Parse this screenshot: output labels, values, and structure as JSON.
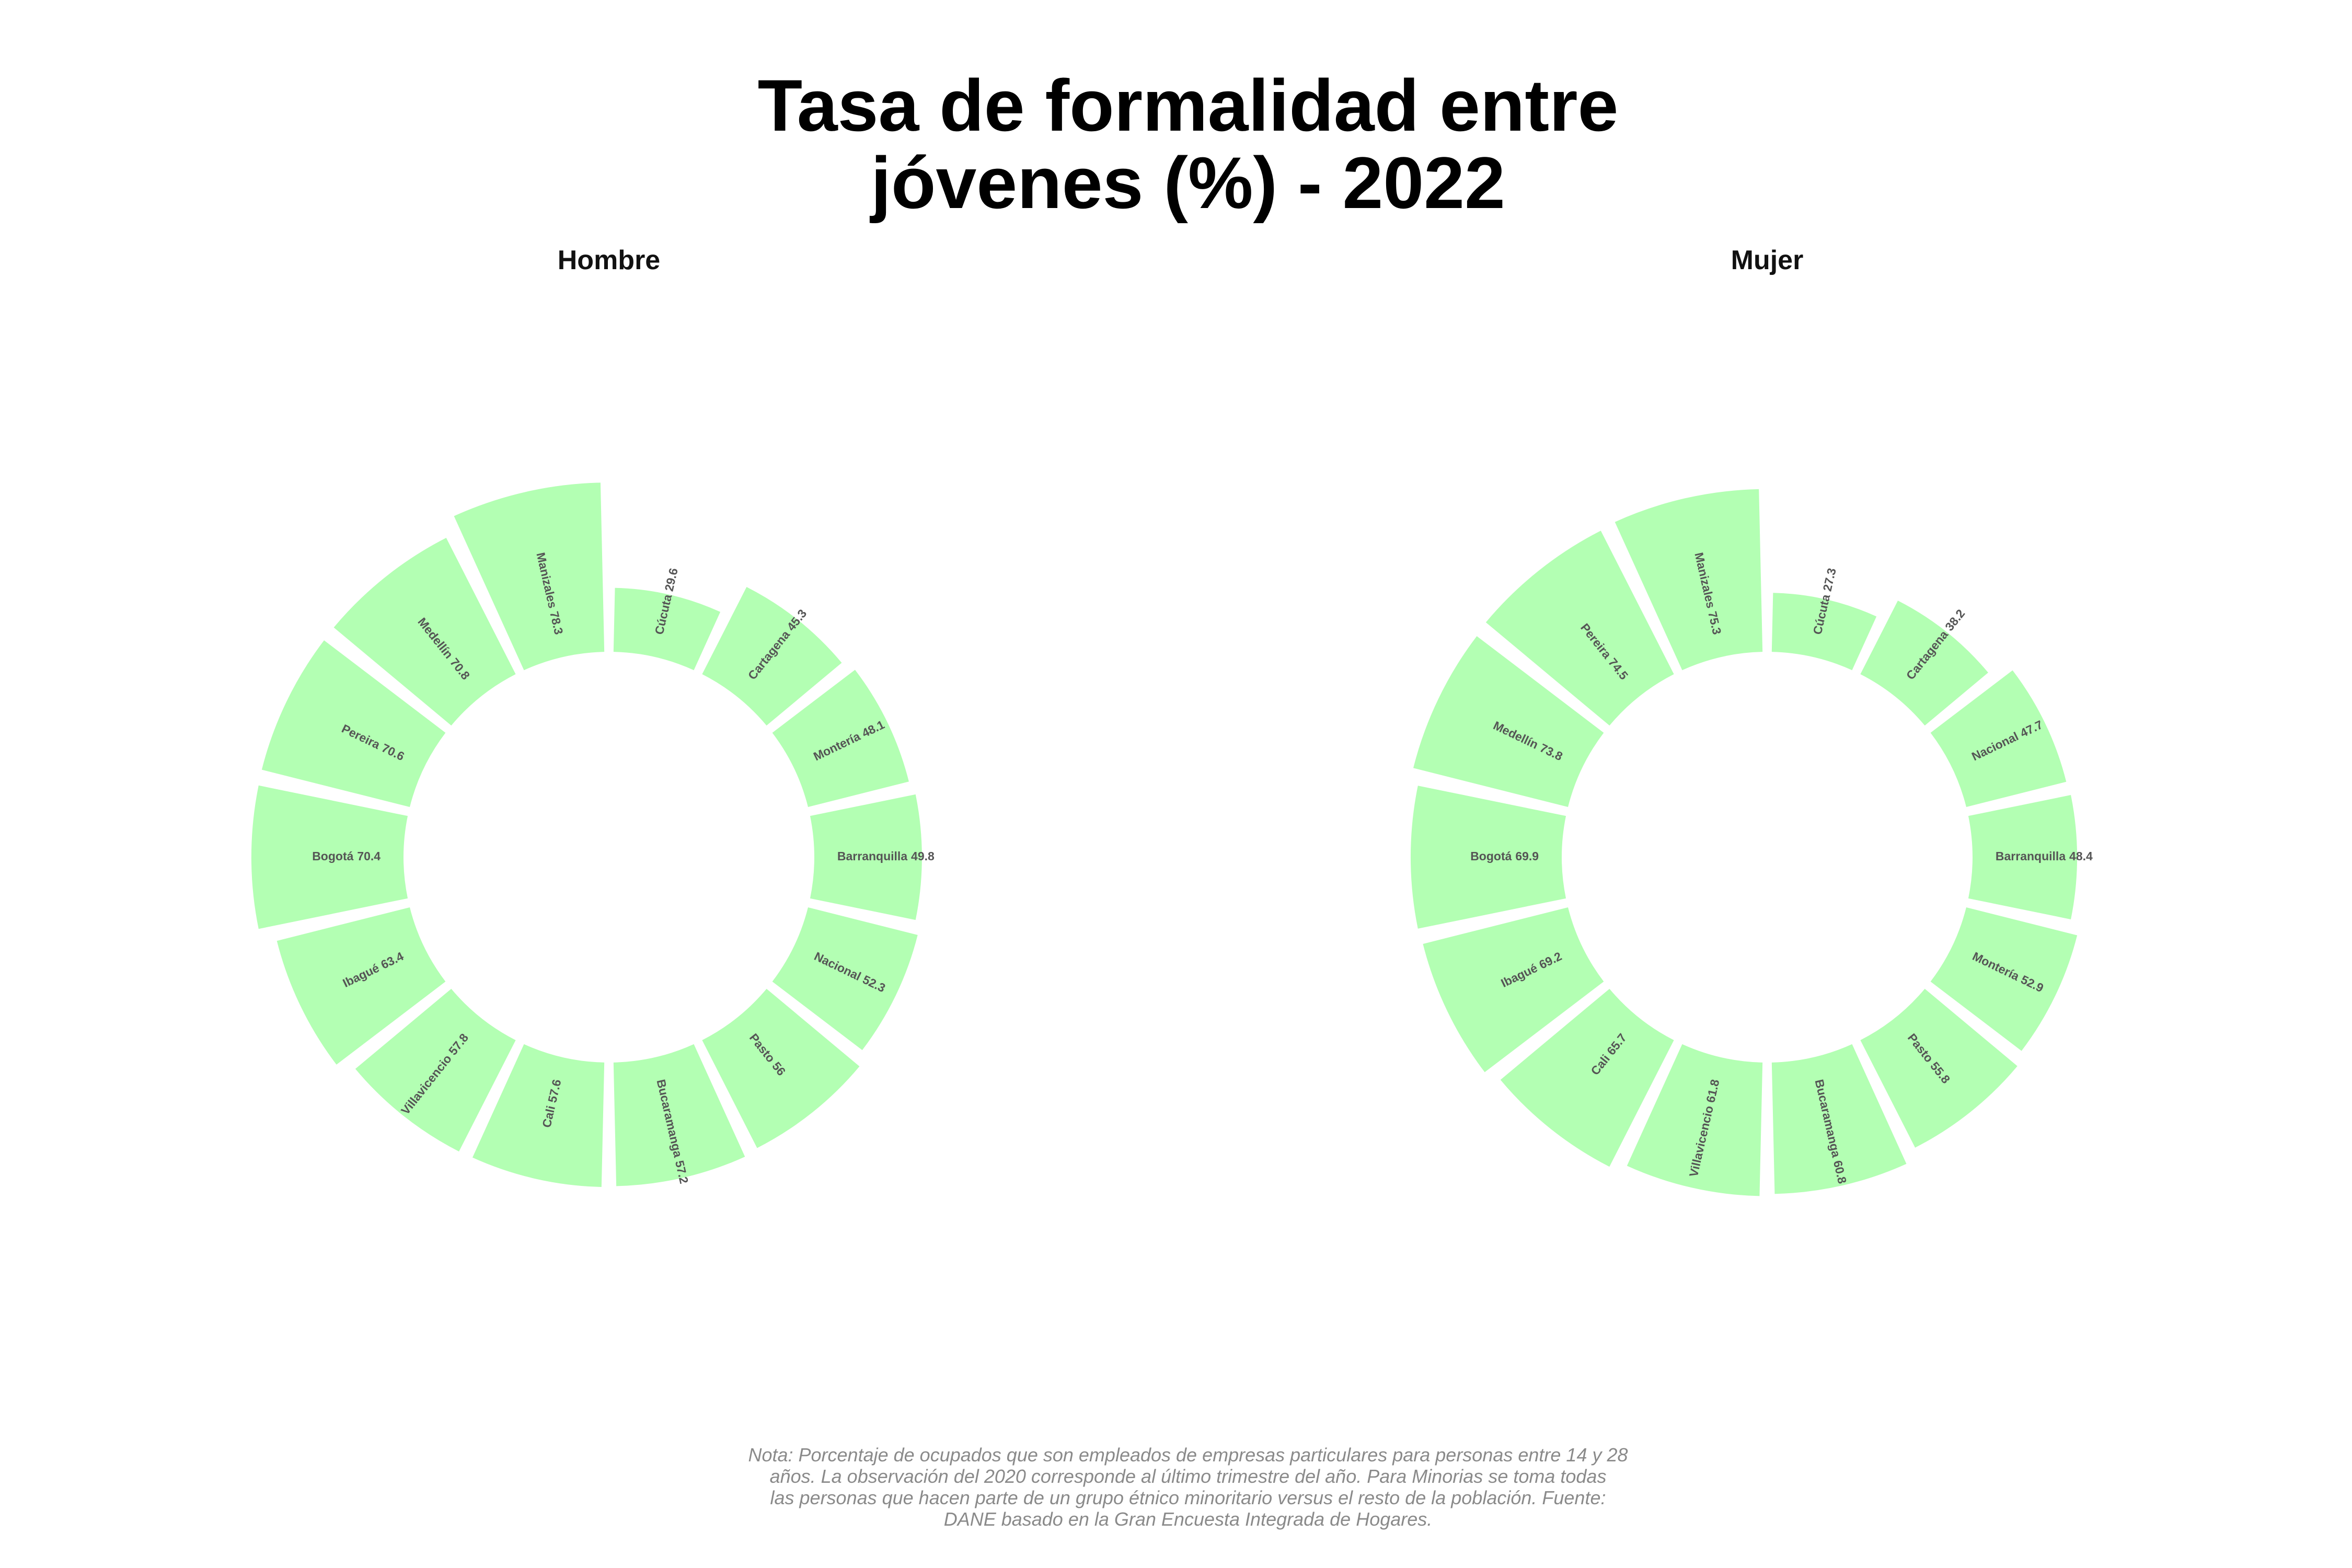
{
  "title": [
    "Tasa de formalidad entre",
    "jóvenes (%) - 2022"
  ],
  "note": [
    "Nota: Porcentaje de ocupados que son empleados de empresas particulares para personas entre 14 y 28",
    "años. La observación del 2020 corresponde al último trimestre del año. Para Minorias se toma todas",
    "las personas que hacen parte de un grupo étnico minoritario versus el resto de la población. Fuente:",
    "DANE basado en la Gran Encuesta Integrada de Hogares."
  ],
  "chart_data": [
    {
      "type": "radial_bar",
      "title": "Hombre",
      "color": "#b3ffb3",
      "ylim": [
        -95,
        80
      ],
      "categories": [
        "Cúcuta",
        "Cartagena",
        "Montería",
        "Barranquilla",
        "Nacional",
        "Pasto",
        "Bucaramanga",
        "Cali",
        "Villavicencio",
        "Ibagué",
        "Bogotá",
        "Pereira",
        "Medellín",
        "Manizales"
      ],
      "values": [
        29.6,
        45.3,
        48.1,
        49.8,
        52.3,
        56,
        57.2,
        57.6,
        57.8,
        63.4,
        70.4,
        70.6,
        70.8,
        78.3
      ]
    },
    {
      "type": "radial_bar",
      "title": "Mujer",
      "color": "#b3ffb3",
      "ylim": [
        -95,
        80
      ],
      "categories": [
        "Cúcuta",
        "Cartagena",
        "Nacional",
        "Barranquilla",
        "Montería",
        "Pasto",
        "Bucaramanga",
        "Villavicencio",
        "Cali",
        "Ibagué",
        "Bogotá",
        "Medellín",
        "Pereira",
        "Manizales"
      ],
      "values": [
        27.3,
        38.2,
        47.7,
        48.4,
        52.9,
        55.8,
        60.8,
        61.8,
        65.7,
        69.2,
        69.9,
        73.8,
        74.5,
        75.3
      ]
    }
  ]
}
